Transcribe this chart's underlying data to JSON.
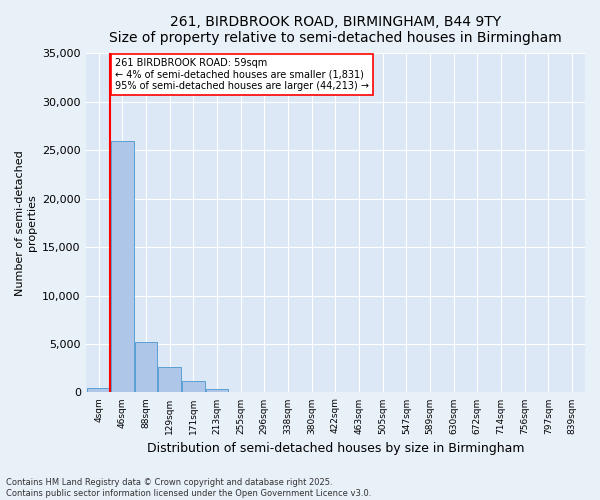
{
  "title": "261, BIRDBROOK ROAD, BIRMINGHAM, B44 9TY",
  "subtitle": "Size of property relative to semi-detached houses in Birmingham",
  "xlabel": "Distribution of semi-detached houses by size in Birmingham",
  "ylabel": "Number of semi-detached\nproperties",
  "footnote": "Contains HM Land Registry data © Crown copyright and database right 2025.\nContains public sector information licensed under the Open Government Licence v3.0.",
  "tick_labels": [
    "4sqm",
    "46sqm",
    "88sqm",
    "129sqm",
    "171sqm",
    "213sqm",
    "255sqm",
    "296sqm",
    "338sqm",
    "380sqm",
    "422sqm",
    "463sqm",
    "505sqm",
    "547sqm",
    "589sqm",
    "630sqm",
    "672sqm",
    "714sqm",
    "756sqm",
    "797sqm",
    "839sqm"
  ],
  "bar_values": [
    500,
    26000,
    5200,
    2600,
    1200,
    400,
    0,
    0,
    0,
    0,
    0,
    0,
    0,
    0,
    0,
    0,
    0,
    0,
    0,
    0,
    0
  ],
  "bar_color": "#aec6e8",
  "bar_edge_color": "#5a9fd4",
  "vline_pos": 0.5,
  "vline_color": "red",
  "annotation_title": "261 BIRDBROOK ROAD: 59sqm",
  "annotation_line1": "← 4% of semi-detached houses are smaller (1,831)",
  "annotation_line2": "95% of semi-detached houses are larger (44,213) →",
  "ylim": [
    0,
    35000
  ],
  "yticks": [
    0,
    5000,
    10000,
    15000,
    20000,
    25000,
    30000,
    35000
  ],
  "background_color": "#e8f0f8",
  "plot_bg_color": "#dce8f5"
}
